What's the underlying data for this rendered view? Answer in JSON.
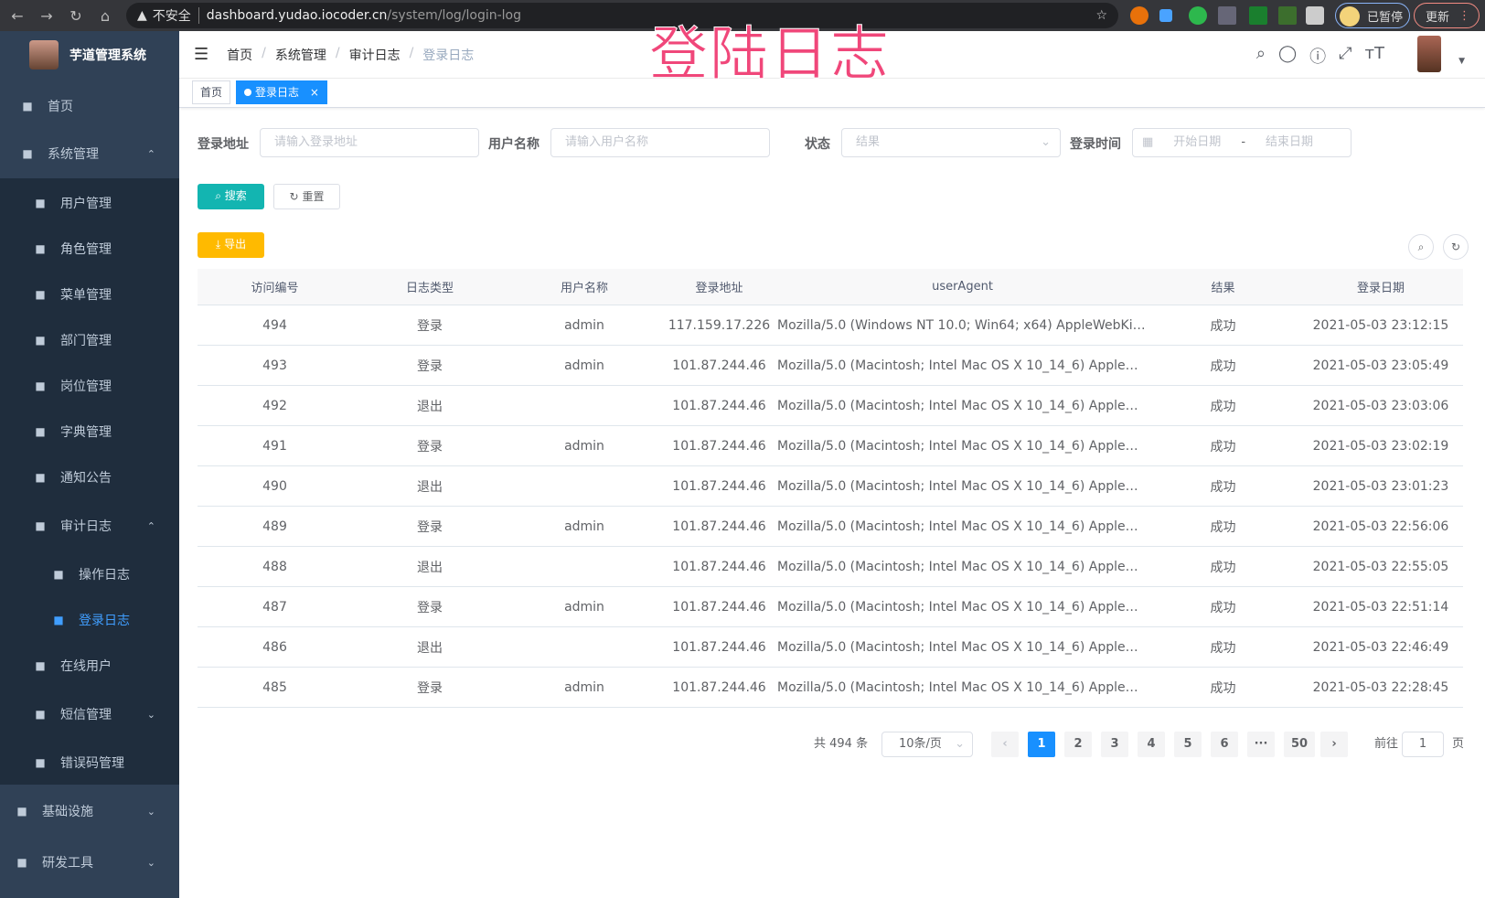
{
  "browser": {
    "insecure_label": "不安全",
    "url_host": "dashboard.yudao.iocoder.cn",
    "url_path": "/system/log/login-log",
    "paused_label": "已暂停",
    "update_label": "更新"
  },
  "overlay_title": "登陆日志",
  "sidebar": {
    "app_title": "芋道管理系统",
    "items": [
      {
        "label": "首页",
        "icon": "dashboard-icon"
      },
      {
        "label": "系统管理",
        "icon": "gear-icon"
      },
      {
        "label": "用户管理",
        "icon": "user-icon"
      },
      {
        "label": "角色管理",
        "icon": "people-icon"
      },
      {
        "label": "菜单管理",
        "icon": "tree-table-icon"
      },
      {
        "label": "部门管理",
        "icon": "tree-icon"
      },
      {
        "label": "岗位管理",
        "icon": "post-icon"
      },
      {
        "label": "字典管理",
        "icon": "dict-icon"
      },
      {
        "label": "通知公告",
        "icon": "message-icon"
      },
      {
        "label": "审计日志",
        "icon": "log-icon"
      },
      {
        "label": "操作日志",
        "icon": "form-icon"
      },
      {
        "label": "登录日志",
        "icon": "logininfor-icon"
      },
      {
        "label": "在线用户",
        "icon": "online-icon"
      },
      {
        "label": "短信管理",
        "icon": "validCode-icon"
      },
      {
        "label": "错误码管理",
        "icon": "code-icon"
      },
      {
        "label": "基础设施",
        "icon": "monitor-icon"
      },
      {
        "label": "研发工具",
        "icon": "tool-icon"
      }
    ]
  },
  "breadcrumb": [
    "首页",
    "系统管理",
    "审计日志",
    "登录日志"
  ],
  "tags": [
    {
      "label": "首页"
    },
    {
      "label": "登录日志",
      "close": "×"
    }
  ],
  "filters": {
    "address_label": "登录地址",
    "address_placeholder": "请输入登录地址",
    "username_label": "用户名称",
    "username_placeholder": "请输入用户名称",
    "status_label": "状态",
    "status_placeholder": "结果",
    "time_label": "登录时间",
    "start_placeholder": "开始日期",
    "range_sep": "-",
    "end_placeholder": "结束日期"
  },
  "buttons": {
    "search": "搜索",
    "reset": "重置",
    "export": "导出"
  },
  "colors": {
    "primary": "#1890ff",
    "search": "#13b5b1",
    "export": "#ffba00",
    "sidebar": "#304156",
    "submenu": "#1f2d3d"
  },
  "table": {
    "headers": [
      "访问编号",
      "日志类型",
      "用户名称",
      "登录地址",
      "userAgent",
      "结果",
      "登录日期"
    ],
    "rows": [
      [
        "494",
        "登录",
        "admin",
        "117.159.17.226",
        "Mozilla/5.0 (Windows NT 10.0; Win64; x64) AppleWebKit...",
        "成功",
        "2021-05-03 23:12:15"
      ],
      [
        "493",
        "登录",
        "admin",
        "101.87.244.46",
        "Mozilla/5.0 (Macintosh; Intel Mac OS X 10_14_6) AppleWe...",
        "成功",
        "2021-05-03 23:05:49"
      ],
      [
        "492",
        "退出",
        "",
        "101.87.244.46",
        "Mozilla/5.0 (Macintosh; Intel Mac OS X 10_14_6) AppleWe...",
        "成功",
        "2021-05-03 23:03:06"
      ],
      [
        "491",
        "登录",
        "admin",
        "101.87.244.46",
        "Mozilla/5.0 (Macintosh; Intel Mac OS X 10_14_6) AppleWe...",
        "成功",
        "2021-05-03 23:02:19"
      ],
      [
        "490",
        "退出",
        "",
        "101.87.244.46",
        "Mozilla/5.0 (Macintosh; Intel Mac OS X 10_14_6) AppleWe...",
        "成功",
        "2021-05-03 23:01:23"
      ],
      [
        "489",
        "登录",
        "admin",
        "101.87.244.46",
        "Mozilla/5.0 (Macintosh; Intel Mac OS X 10_14_6) AppleWe...",
        "成功",
        "2021-05-03 22:56:06"
      ],
      [
        "488",
        "退出",
        "",
        "101.87.244.46",
        "Mozilla/5.0 (Macintosh; Intel Mac OS X 10_14_6) AppleWe...",
        "成功",
        "2021-05-03 22:55:05"
      ],
      [
        "487",
        "登录",
        "admin",
        "101.87.244.46",
        "Mozilla/5.0 (Macintosh; Intel Mac OS X 10_14_6) AppleWe...",
        "成功",
        "2021-05-03 22:51:14"
      ],
      [
        "486",
        "退出",
        "",
        "101.87.244.46",
        "Mozilla/5.0 (Macintosh; Intel Mac OS X 10_14_6) AppleWe...",
        "成功",
        "2021-05-03 22:46:49"
      ],
      [
        "485",
        "登录",
        "admin",
        "101.87.244.46",
        "Mozilla/5.0 (Macintosh; Intel Mac OS X 10_14_6) AppleWe...",
        "成功",
        "2021-05-03 22:28:45"
      ]
    ]
  },
  "pagination": {
    "total_label": "共 494 条",
    "page_size": "10条/页",
    "pages": [
      "1",
      "2",
      "3",
      "4",
      "5",
      "6",
      "···",
      "50"
    ],
    "current": "1",
    "goto_label": "前往",
    "goto_value": "1",
    "page_suffix": "页"
  }
}
